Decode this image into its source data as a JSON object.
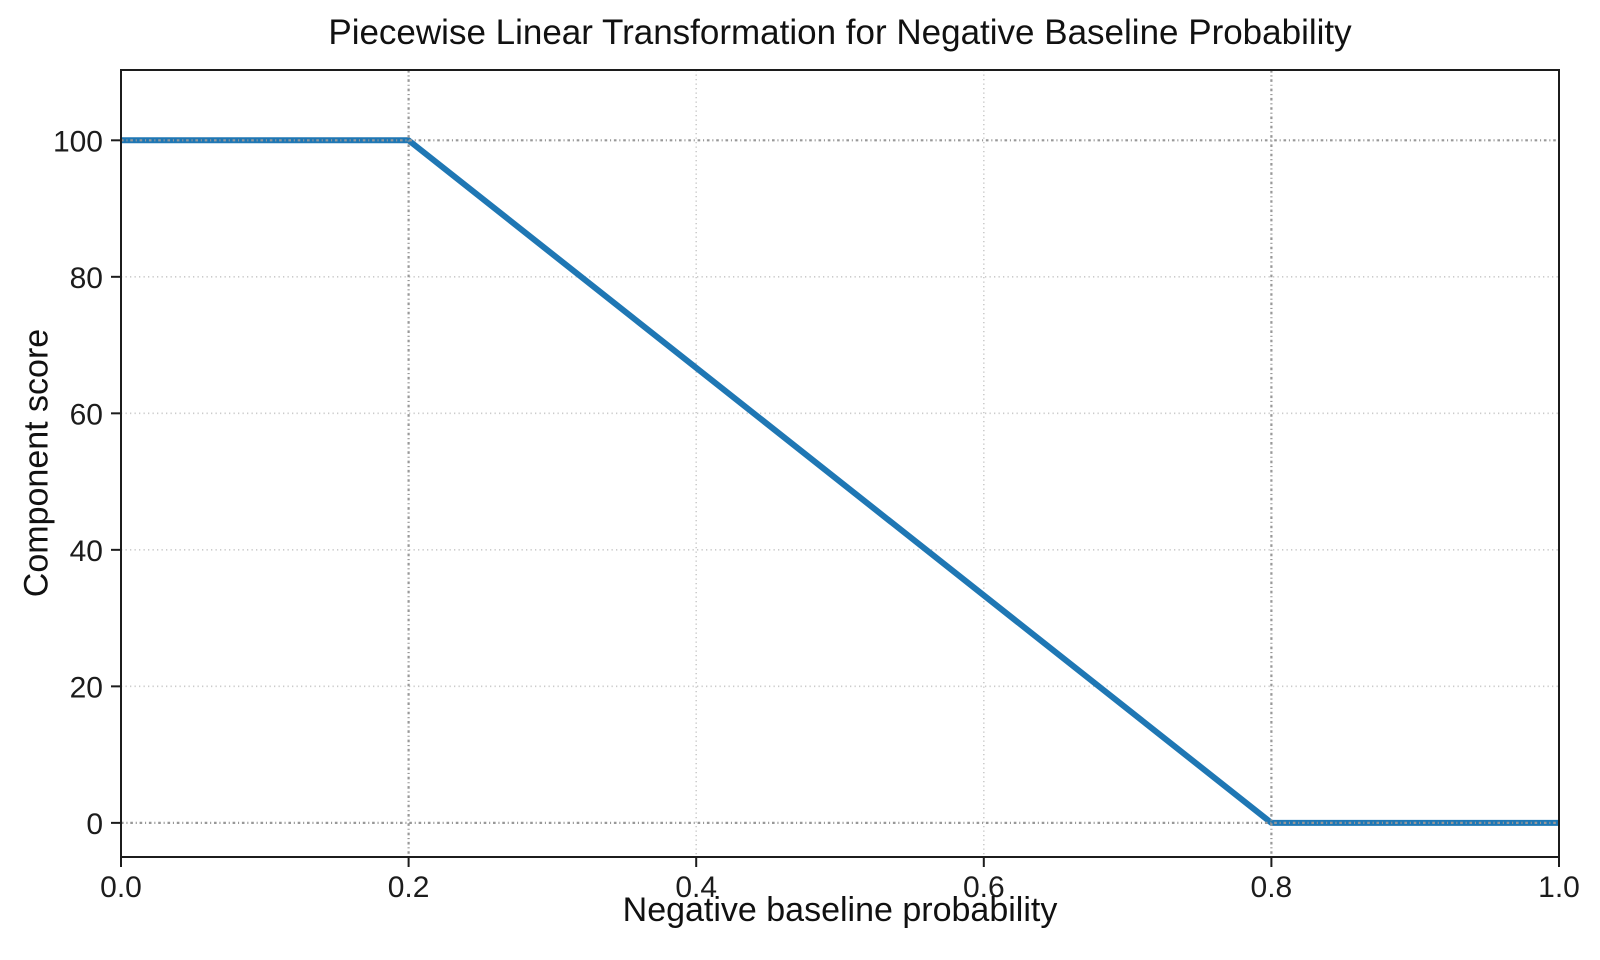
{
  "chart_data": {
    "type": "line",
    "title": "Piecewise Linear Transformation for Negative Baseline Probability",
    "xlabel": "Negative baseline probability",
    "ylabel": "Component score",
    "xlim": [
      0.0,
      1.0
    ],
    "ylim": [
      -5.0,
      110.3
    ],
    "xticks": [
      0.0,
      0.2,
      0.4,
      0.6,
      0.8,
      1.0
    ],
    "xtick_labels": [
      "0.0",
      "0.2",
      "0.4",
      "0.6",
      "0.8",
      "1.0"
    ],
    "yticks": [
      0,
      20,
      40,
      60,
      80,
      100
    ],
    "ytick_labels": [
      "0",
      "20",
      "40",
      "60",
      "80",
      "100"
    ],
    "series": [
      {
        "name": "component_score",
        "x": [
          0.0,
          0.2,
          0.8,
          1.0
        ],
        "y": [
          100,
          100,
          0,
          0
        ],
        "color": "#1f77b4",
        "linewidth": 6
      }
    ],
    "grid": {
      "on": true,
      "style": "dotted",
      "color": "#cbcbcb"
    },
    "reference_lines": {
      "vertical_x": [
        0.2,
        0.8
      ],
      "horizontal_y": [
        0,
        100
      ],
      "style": "dash-dot",
      "color": "#989898"
    },
    "legend": "none",
    "colors": {
      "line": "#1f77b4",
      "spine": "#1c1c1c",
      "text": "#111111",
      "grid_minor": "#cbcbcb",
      "grid_reference": "#989898",
      "background": "#ffffff"
    }
  }
}
